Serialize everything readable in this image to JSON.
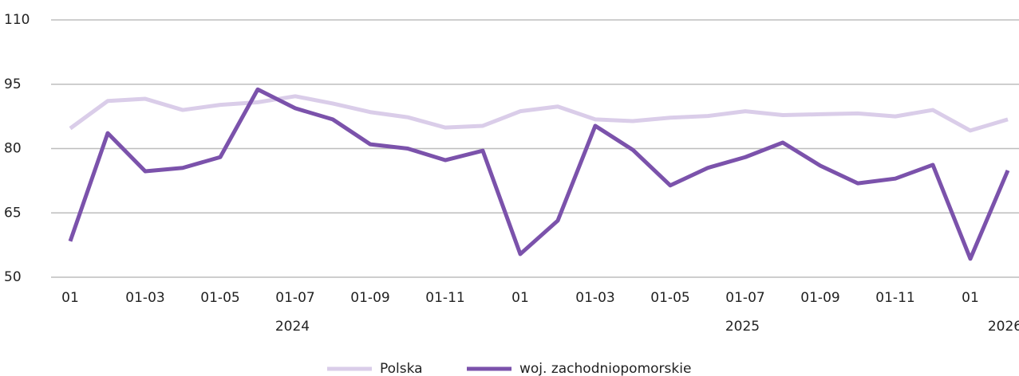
{
  "chart_data": {
    "type": "line",
    "categories": [
      "01",
      null,
      "01-03",
      null,
      "01-05",
      null,
      "01-07",
      null,
      "01-09",
      null,
      "01-11",
      null,
      "01",
      null,
      "01-03",
      null,
      "01-05",
      null,
      "01-07",
      null,
      "01-09",
      null,
      "01-11",
      null,
      "01",
      null
    ],
    "year_labels": [
      "2024",
      "2025",
      "2026"
    ],
    "series": [
      {
        "name": "Polska",
        "color": "#dacde9",
        "values": [
          84.7,
          91.1,
          91.6,
          89,
          90.2,
          90.8,
          92.2,
          90.5,
          88.5,
          87.3,
          84.9,
          85.3,
          88.7,
          89.8,
          86.8,
          86.4,
          87.2,
          87.6,
          88.7,
          87.8,
          88,
          88.2,
          87.5,
          89,
          84.2,
          86.8
        ]
      },
      {
        "name": "woj. zachodniopomorskie",
        "color": "#7b52ab",
        "values": [
          58.4,
          83.6,
          74.7,
          75.5,
          78,
          93.8,
          89.4,
          86.8,
          81,
          80,
          77.3,
          79.5,
          55.4,
          63.2,
          85.3,
          79.7,
          71.4,
          75.5,
          78,
          81.4,
          76,
          71.9,
          73,
          76.2,
          54.3,
          74.9
        ]
      }
    ],
    "ylim": [
      50,
      110
    ],
    "yticks": [
      50,
      65,
      80,
      95,
      110
    ],
    "grid": true,
    "legend": "bottom"
  }
}
